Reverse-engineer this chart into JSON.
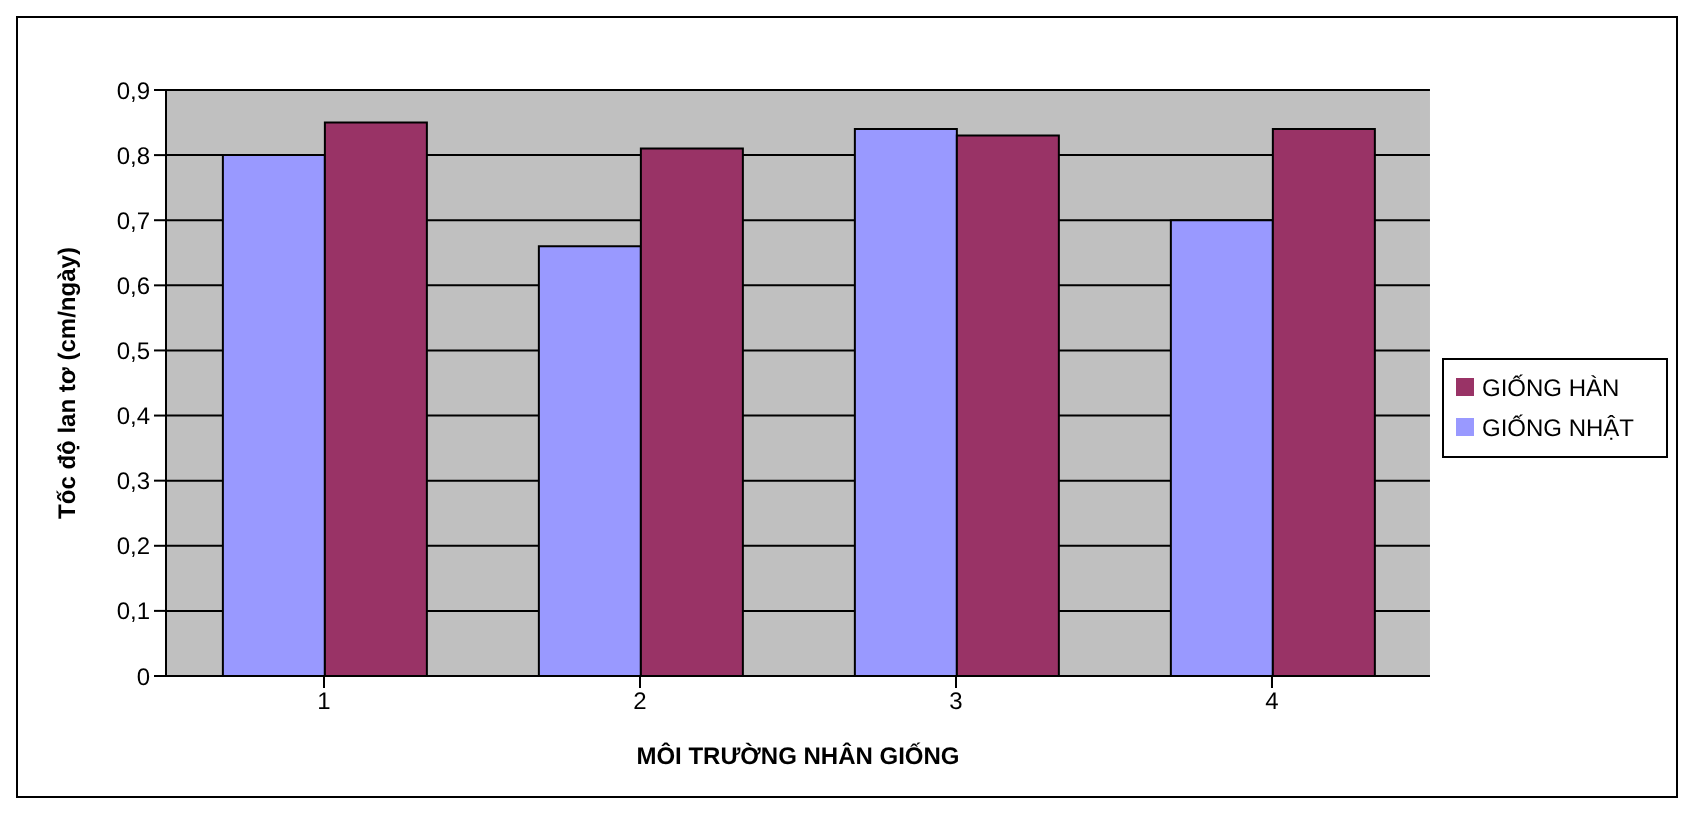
{
  "chart_data": {
    "type": "bar",
    "categories": [
      "1",
      "2",
      "3",
      "4"
    ],
    "series": [
      {
        "name": "GIỐNG NHẬT",
        "color": "#9999ff",
        "values": [
          0.8,
          0.66,
          0.84,
          0.7
        ]
      },
      {
        "name": "GIỐNG HÀN",
        "color": "#993366",
        "values": [
          0.85,
          0.81,
          0.83,
          0.84
        ]
      }
    ],
    "xlabel": "MÔI TRƯỜNG NHÂN GIỐNG",
    "ylabel": "Tốc độ lan tơ (cm/ngày)",
    "ylim": [
      0,
      0.9
    ],
    "yticks": [
      {
        "value": 0,
        "label": "0"
      },
      {
        "value": 0.1,
        "label": "0,1"
      },
      {
        "value": 0.2,
        "label": "0,2"
      },
      {
        "value": 0.3,
        "label": "0,3"
      },
      {
        "value": 0.4,
        "label": "0,4"
      },
      {
        "value": 0.5,
        "label": "0,5"
      },
      {
        "value": 0.6,
        "label": "0,6"
      },
      {
        "value": 0.7,
        "label": "0,7"
      },
      {
        "value": 0.8,
        "label": "0,8"
      },
      {
        "value": 0.9,
        "label": "0,9"
      }
    ],
    "grid": "y",
    "legend": "right"
  }
}
